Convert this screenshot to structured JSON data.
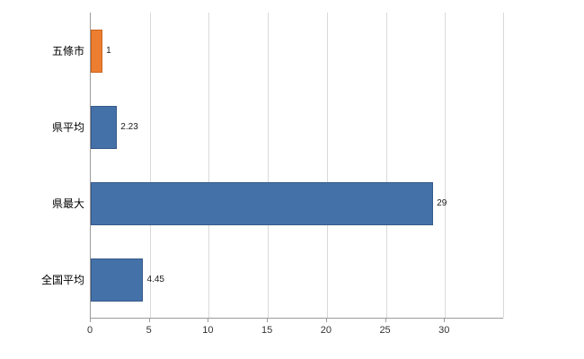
{
  "chart_data": {
    "type": "bar",
    "orientation": "horizontal",
    "title": "",
    "xlabel": "",
    "ylabel": "",
    "categories": [
      "五條市",
      "県平均",
      "県最大",
      "全国平均"
    ],
    "values": [
      1,
      2.23,
      29,
      4.45
    ],
    "value_labels": [
      "1",
      "2.23",
      "29",
      "4.45"
    ],
    "xlim": [
      0,
      35
    ],
    "xticks": [
      0,
      5,
      10,
      15,
      20,
      25,
      30
    ],
    "grid": true,
    "legend": "none",
    "colors": {
      "highlight_bar": "#ed7d31",
      "highlight_bar_border": "#c8621a",
      "default_bar": "#4472a8",
      "default_bar_border": "#35598b",
      "gridline": "#d9d9d9",
      "axis": "#9b9b9b",
      "text": "#1a1a1a",
      "background": "#ffffff"
    },
    "bar_color_map": [
      "highlight_bar",
      "default_bar",
      "default_bar",
      "default_bar"
    ]
  }
}
